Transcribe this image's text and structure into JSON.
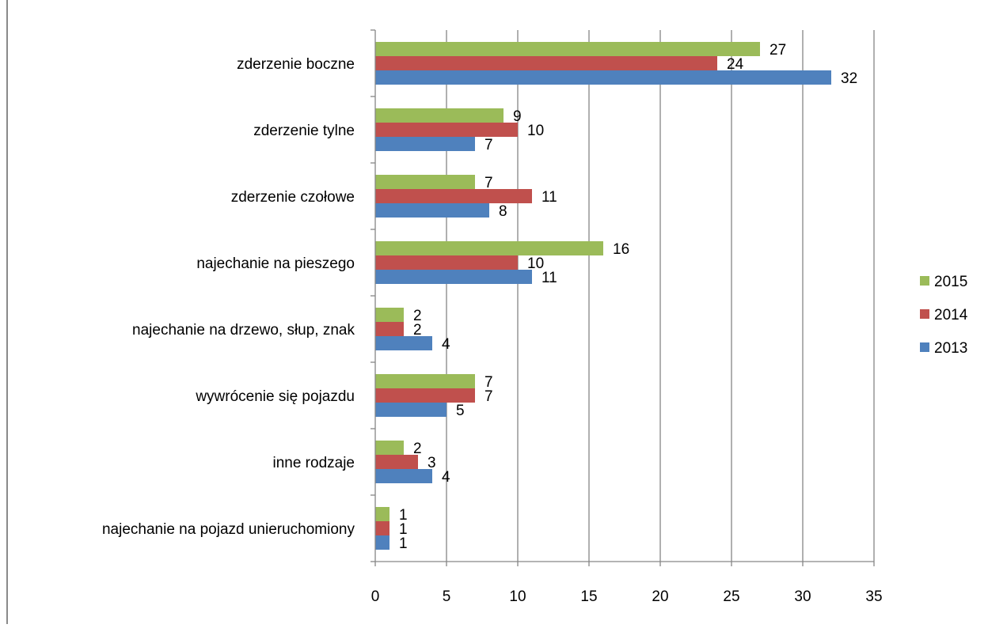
{
  "chart_data": {
    "type": "bar",
    "orientation": "horizontal",
    "title": "",
    "xlabel": "",
    "ylabel": "",
    "xlim": [
      0,
      35
    ],
    "x_ticks": [
      0,
      5,
      10,
      15,
      20,
      25,
      30,
      35
    ],
    "grid": true,
    "legend_position": "right",
    "categories": [
      "zderzenie boczne",
      "zderzenie tylne",
      "zderzenie czołowe",
      "najechanie na pieszego",
      "najechanie na drzewo, słup, znak",
      "wywrócenie się pojazdu",
      "inne rodzaje",
      "najechanie na pojazd unieruchomiony"
    ],
    "series": [
      {
        "name": "2015",
        "color": "#9BBB59",
        "values": [
          27,
          9,
          7,
          16,
          2,
          7,
          2,
          1
        ]
      },
      {
        "name": "2014",
        "color": "#C0504D",
        "values": [
          24,
          10,
          11,
          10,
          2,
          7,
          3,
          1
        ]
      },
      {
        "name": "2013",
        "color": "#4F81BD",
        "values": [
          32,
          7,
          8,
          11,
          4,
          5,
          4,
          1
        ]
      }
    ],
    "legend_order": [
      "2015",
      "2014",
      "2013"
    ]
  }
}
